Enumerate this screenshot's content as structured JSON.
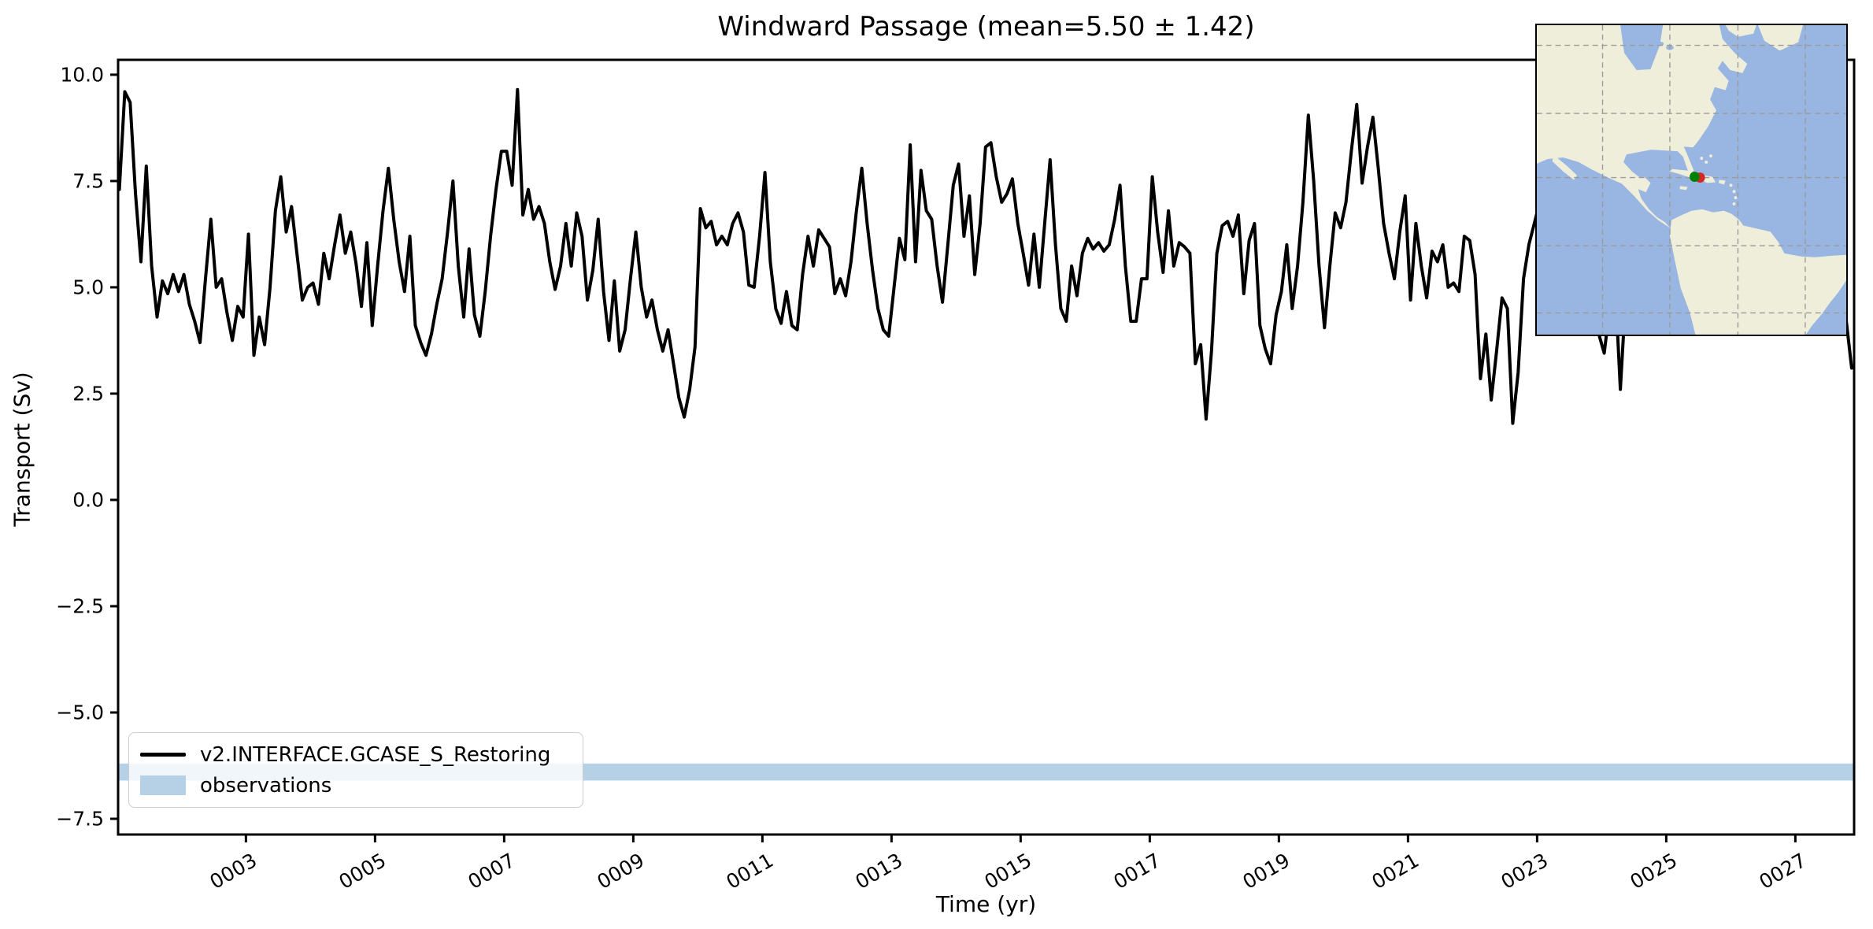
{
  "header": {
    "title": "Windward Passage (mean=5.50 ± 1.42)"
  },
  "legend": {
    "series_label": "v2.INTERFACE.GCASE_S_Restoring",
    "observations_label": "observations"
  },
  "colors": {
    "series_line": "#000000",
    "observations_band": "#b6d1e6",
    "map_ocean": "#98b6e1",
    "map_land": "#efeedb",
    "map_grid": "#9a9a9a",
    "marker_green": "#008000",
    "marker_red": "#d62728",
    "legend_border": "#cccccc",
    "spine": "#000000"
  },
  "chart_data": {
    "type": "line",
    "title": "Windward Passage (mean=5.50 ± 1.42)",
    "xlabel": "Time (yr)",
    "ylabel": "Transport (Sv)",
    "xlim": [
      1.02,
      27.91
    ],
    "ylim": [
      -7.87,
      10.35
    ],
    "grid": false,
    "legend_position": "lower left",
    "x_ticks": {
      "labels": [
        "0003",
        "0005",
        "0007",
        "0009",
        "0011",
        "0013",
        "0015",
        "0017",
        "0019",
        "0021",
        "0023",
        "0025",
        "0027"
      ],
      "values": [
        3,
        5,
        7,
        9,
        11,
        13,
        15,
        17,
        19,
        21,
        23,
        25,
        27
      ]
    },
    "y_ticks": {
      "labels": [
        "10.0",
        "7.5",
        "5.0",
        "2.5",
        "0.0",
        "−2.5",
        "−5.0",
        "−7.5"
      ],
      "values": [
        10.0,
        7.5,
        5.0,
        2.5,
        0.0,
        -2.5,
        -5.0,
        -7.5
      ]
    },
    "observations_band": {
      "label": "observations",
      "y_min": -6.6,
      "y_max": -6.2
    },
    "series": [
      {
        "name": "v2.INTERFACE.GCASE_S_Restoring",
        "mean": 5.5,
        "std": 1.42,
        "x_start_year": 1.04,
        "x_step_years": 0.08333,
        "values": [
          7.3,
          9.6,
          9.35,
          7.2,
          5.6,
          7.85,
          5.5,
          4.3,
          5.15,
          4.85,
          5.3,
          4.9,
          5.3,
          4.6,
          4.2,
          3.7,
          5.2,
          6.6,
          5.0,
          5.2,
          4.4,
          3.75,
          4.55,
          4.3,
          6.25,
          3.4,
          4.3,
          3.65,
          5.0,
          6.8,
          7.6,
          6.3,
          6.9,
          5.8,
          4.7,
          5.0,
          5.1,
          4.6,
          5.8,
          5.2,
          6.0,
          6.7,
          5.8,
          6.3,
          5.55,
          4.55,
          6.05,
          4.1,
          5.5,
          6.8,
          7.8,
          6.6,
          5.6,
          4.9,
          6.2,
          4.1,
          3.7,
          3.4,
          3.9,
          4.6,
          5.2,
          6.3,
          7.5,
          5.5,
          4.3,
          5.9,
          4.35,
          3.85,
          4.9,
          6.2,
          7.3,
          8.2,
          8.2,
          7.4,
          9.65,
          6.7,
          7.3,
          6.6,
          6.9,
          6.5,
          5.6,
          4.95,
          5.5,
          6.5,
          5.5,
          6.75,
          6.2,
          4.7,
          5.4,
          6.6,
          4.9,
          3.75,
          5.15,
          3.5,
          4.0,
          5.2,
          6.3,
          5.0,
          4.3,
          4.7,
          4.0,
          3.5,
          4.0,
          3.2,
          2.4,
          1.95,
          2.6,
          3.6,
          6.85,
          6.4,
          6.55,
          6.0,
          6.2,
          6.0,
          6.5,
          6.75,
          6.3,
          5.05,
          5.0,
          6.2,
          7.7,
          5.6,
          4.5,
          4.15,
          4.9,
          4.1,
          4.0,
          5.3,
          6.2,
          5.5,
          6.35,
          6.15,
          5.95,
          4.85,
          5.2,
          4.8,
          5.6,
          6.8,
          7.8,
          6.5,
          5.4,
          4.5,
          4.0,
          3.85,
          5.0,
          6.15,
          5.65,
          8.35,
          5.6,
          7.75,
          6.8,
          6.6,
          5.5,
          4.65,
          6.0,
          7.4,
          7.9,
          6.2,
          7.15,
          5.3,
          6.5,
          8.3,
          8.4,
          7.6,
          7.0,
          7.2,
          7.55,
          6.5,
          5.8,
          5.05,
          6.25,
          5.0,
          6.5,
          8.0,
          6.0,
          4.5,
          4.2,
          5.5,
          4.8,
          5.8,
          6.15,
          5.9,
          6.05,
          5.85,
          6.0,
          6.6,
          7.4,
          5.5,
          4.2,
          4.2,
          5.2,
          5.2,
          7.6,
          6.3,
          5.35,
          6.8,
          5.5,
          6.05,
          5.95,
          5.8,
          3.2,
          3.65,
          1.9,
          3.5,
          5.8,
          6.45,
          6.55,
          6.2,
          6.7,
          4.85,
          6.1,
          6.5,
          4.1,
          3.55,
          3.2,
          4.35,
          4.9,
          6.0,
          4.5,
          5.5,
          7.0,
          9.05,
          7.5,
          5.5,
          4.05,
          5.5,
          6.75,
          6.4,
          7.0,
          8.2,
          9.3,
          7.45,
          8.3,
          9.0,
          7.8,
          6.5,
          5.8,
          5.2,
          6.3,
          7.15,
          4.7,
          6.5,
          5.5,
          4.75,
          5.85,
          5.6,
          6.0,
          5.0,
          5.1,
          4.9,
          6.2,
          6.1,
          5.3,
          2.85,
          3.9,
          2.35,
          3.5,
          4.75,
          4.5,
          1.8,
          3.0,
          5.2,
          6.0,
          6.5,
          7.0,
          6.5,
          5.8,
          6.3,
          5.5,
          6.0,
          6.8,
          6.2,
          5.6,
          5.0,
          4.4,
          3.9,
          3.45,
          4.5,
          5.2,
          2.6,
          4.8,
          5.5,
          6.0,
          5.6,
          6.2,
          5.8,
          5.2,
          5.6,
          6.0,
          5.4,
          4.8,
          5.8,
          6.4,
          5.9,
          5.3,
          6.1,
          6.6,
          6.0,
          5.5,
          5.0,
          5.6,
          6.2,
          5.7,
          5.1,
          5.9,
          6.5,
          6.0,
          5.4,
          4.9,
          5.7,
          6.3,
          5.8,
          5.2,
          5.8,
          6.1,
          5.5,
          5.0,
          5.6,
          6.0,
          5.4,
          4.8,
          4.2,
          3.1
        ]
      }
    ]
  },
  "inset_map": {
    "description": "Caribbean / Americas locator map",
    "marker_location": "Windward Passage (between Cuba and Hispaniola)",
    "markers": [
      {
        "name": "location-marker-red",
        "color": "#d62728"
      },
      {
        "name": "location-marker-green",
        "color": "#008000"
      }
    ]
  }
}
